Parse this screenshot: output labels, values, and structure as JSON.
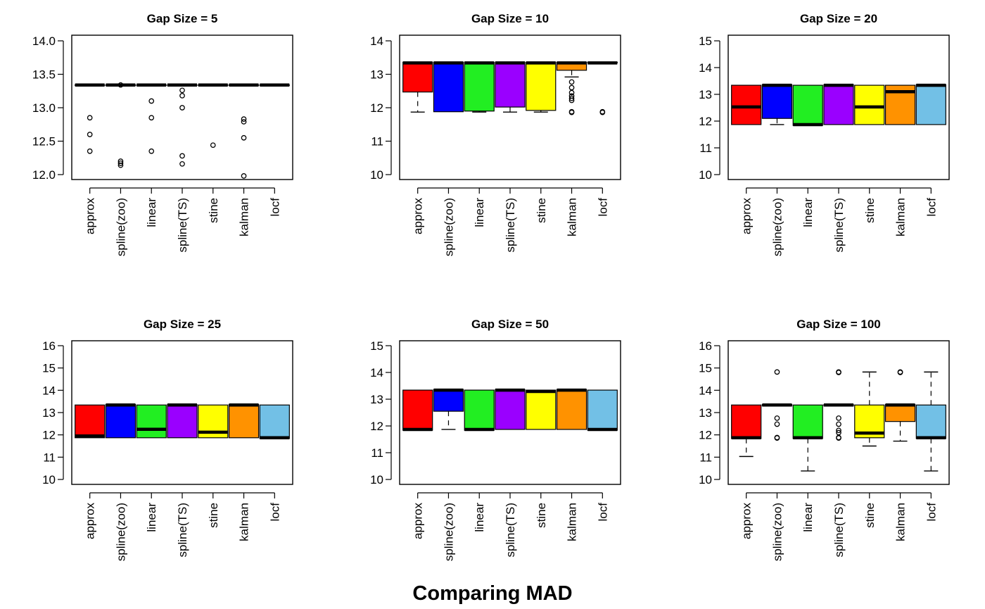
{
  "figure": {
    "title": "Comparing MAD"
  },
  "colors": {
    "approx": "#ff0000",
    "spline(zoo)": "#0000ff",
    "linear": "#22ee22",
    "spline(TS)": "#9a00ff",
    "stine": "#ffff00",
    "kalman": "#ff9200",
    "locf": "#72c0e6",
    "axis": "#000000"
  },
  "chart_data": [
    {
      "type": "box",
      "title": "Gap Size = 5",
      "categories": [
        "approx",
        "spline(zoo)",
        "linear",
        "spline(TS)",
        "stine",
        "kalman",
        "locf"
      ],
      "ylim": [
        12.0,
        14.0
      ],
      "yticks": [
        "12.0",
        "12.5",
        "13.0",
        "13.5",
        "14.0"
      ],
      "boxes": [
        {
          "q1": 13.34,
          "median": 13.34,
          "q3": 13.34,
          "whisker_low": 13.34,
          "whisker_high": 13.34,
          "outliers": [
            12.85,
            12.6,
            12.35
          ]
        },
        {
          "q1": 13.34,
          "median": 13.34,
          "q3": 13.34,
          "whisker_low": 13.34,
          "whisker_high": 13.34,
          "outliers": [
            13.34,
            12.2,
            12.17,
            12.14
          ]
        },
        {
          "q1": 13.34,
          "median": 13.34,
          "q3": 13.34,
          "whisker_low": 13.34,
          "whisker_high": 13.34,
          "outliers": [
            13.1,
            12.85,
            12.35
          ]
        },
        {
          "q1": 13.34,
          "median": 13.34,
          "q3": 13.34,
          "whisker_low": 13.34,
          "whisker_high": 13.34,
          "outliers": [
            13.26,
            13.18,
            13.0,
            12.28,
            12.16
          ]
        },
        {
          "q1": 13.34,
          "median": 13.34,
          "q3": 13.34,
          "whisker_low": 13.34,
          "whisker_high": 13.34,
          "outliers": [
            12.44
          ]
        },
        {
          "q1": 13.34,
          "median": 13.34,
          "q3": 13.34,
          "whisker_low": 13.34,
          "whisker_high": 13.34,
          "outliers": [
            12.83,
            12.79,
            12.55,
            11.98
          ]
        },
        {
          "q1": 13.34,
          "median": 13.34,
          "q3": 13.34,
          "whisker_low": 13.34,
          "whisker_high": 13.34,
          "outliers": []
        }
      ]
    },
    {
      "type": "box",
      "title": "Gap Size = 10",
      "categories": [
        "approx",
        "spline(zoo)",
        "linear",
        "spline(TS)",
        "stine",
        "kalman",
        "locf"
      ],
      "ylim": [
        10,
        14
      ],
      "yticks": [
        "10",
        "11",
        "12",
        "13",
        "14"
      ],
      "boxes": [
        {
          "q1": 12.47,
          "median": 13.34,
          "q3": 13.36,
          "whisker_low": 11.87,
          "whisker_high": 13.36,
          "outliers": []
        },
        {
          "q1": 11.88,
          "median": 13.34,
          "q3": 13.36,
          "whisker_low": 11.87,
          "whisker_high": 13.36,
          "outliers": []
        },
        {
          "q1": 11.9,
          "median": 13.34,
          "q3": 13.36,
          "whisker_low": 11.87,
          "whisker_high": 13.36,
          "outliers": []
        },
        {
          "q1": 12.02,
          "median": 13.34,
          "q3": 13.36,
          "whisker_low": 11.87,
          "whisker_high": 13.36,
          "outliers": []
        },
        {
          "q1": 11.92,
          "median": 13.34,
          "q3": 13.36,
          "whisker_low": 11.87,
          "whisker_high": 13.36,
          "outliers": []
        },
        {
          "q1": 13.12,
          "median": 13.34,
          "q3": 13.36,
          "whisker_low": 12.92,
          "whisker_high": 13.36,
          "outliers": [
            12.77,
            12.6,
            12.45,
            12.35,
            12.28,
            12.22,
            11.88,
            11.86
          ]
        },
        {
          "q1": 13.34,
          "median": 13.34,
          "q3": 13.36,
          "whisker_low": 13.34,
          "whisker_high": 13.36,
          "outliers": [
            11.88,
            11.86
          ]
        }
      ]
    },
    {
      "type": "box",
      "title": "Gap Size = 20",
      "categories": [
        "approx",
        "spline(zoo)",
        "linear",
        "spline(TS)",
        "stine",
        "kalman",
        "locf"
      ],
      "ylim": [
        10,
        15
      ],
      "yticks": [
        "10",
        "11",
        "12",
        "13",
        "14",
        "15"
      ],
      "boxes": [
        {
          "q1": 11.87,
          "median": 12.53,
          "q3": 13.34,
          "whisker_low": 11.87,
          "whisker_high": 13.34,
          "outliers": []
        },
        {
          "q1": 12.1,
          "median": 13.34,
          "q3": 13.36,
          "whisker_low": 11.87,
          "whisker_high": 13.36,
          "outliers": []
        },
        {
          "q1": 11.84,
          "median": 11.87,
          "q3": 13.34,
          "whisker_low": 11.84,
          "whisker_high": 13.34,
          "outliers": []
        },
        {
          "q1": 11.87,
          "median": 13.34,
          "q3": 13.36,
          "whisker_low": 11.87,
          "whisker_high": 13.36,
          "outliers": []
        },
        {
          "q1": 11.87,
          "median": 12.53,
          "q3": 13.34,
          "whisker_low": 11.87,
          "whisker_high": 13.34,
          "outliers": []
        },
        {
          "q1": 11.87,
          "median": 13.1,
          "q3": 13.34,
          "whisker_low": 11.87,
          "whisker_high": 13.34,
          "outliers": []
        },
        {
          "q1": 11.87,
          "median": 13.34,
          "q3": 13.36,
          "whisker_low": 11.87,
          "whisker_high": 13.36,
          "outliers": []
        }
      ]
    },
    {
      "type": "box",
      "title": "Gap Size = 25",
      "categories": [
        "approx",
        "spline(zoo)",
        "linear",
        "spline(TS)",
        "stine",
        "kalman",
        "locf"
      ],
      "ylim": [
        10,
        16
      ],
      "yticks": [
        "10",
        "11",
        "12",
        "13",
        "14",
        "15",
        "16"
      ],
      "boxes": [
        {
          "q1": 11.87,
          "median": 11.95,
          "q3": 13.34,
          "whisker_low": 11.87,
          "whisker_high": 13.34,
          "outliers": []
        },
        {
          "q1": 11.87,
          "median": 13.34,
          "q3": 13.36,
          "whisker_low": 11.87,
          "whisker_high": 13.36,
          "outliers": []
        },
        {
          "q1": 11.87,
          "median": 12.25,
          "q3": 13.34,
          "whisker_low": 11.87,
          "whisker_high": 13.34,
          "outliers": []
        },
        {
          "q1": 11.87,
          "median": 13.34,
          "q3": 13.36,
          "whisker_low": 11.87,
          "whisker_high": 13.36,
          "outliers": []
        },
        {
          "q1": 11.87,
          "median": 12.12,
          "q3": 13.34,
          "whisker_low": 11.87,
          "whisker_high": 13.34,
          "outliers": []
        },
        {
          "q1": 11.87,
          "median": 13.34,
          "q3": 13.36,
          "whisker_low": 11.87,
          "whisker_high": 13.36,
          "outliers": []
        },
        {
          "q1": 11.84,
          "median": 11.87,
          "q3": 13.34,
          "whisker_low": 11.84,
          "whisker_high": 13.34,
          "outliers": []
        }
      ]
    },
    {
      "type": "box",
      "title": "Gap Size = 50",
      "categories": [
        "approx",
        "spline(zoo)",
        "linear",
        "spline(TS)",
        "stine",
        "kalman",
        "locf"
      ],
      "ylim": [
        10,
        15
      ],
      "yticks": [
        "10",
        "11",
        "12",
        "13",
        "14",
        "15"
      ],
      "boxes": [
        {
          "q1": 11.84,
          "median": 11.87,
          "q3": 13.34,
          "whisker_low": 11.84,
          "whisker_high": 13.34,
          "outliers": []
        },
        {
          "q1": 12.55,
          "median": 13.34,
          "q3": 13.36,
          "whisker_low": 11.87,
          "whisker_high": 13.36,
          "outliers": []
        },
        {
          "q1": 11.84,
          "median": 11.87,
          "q3": 13.34,
          "whisker_low": 11.84,
          "whisker_high": 13.34,
          "outliers": []
        },
        {
          "q1": 11.87,
          "median": 13.34,
          "q3": 13.36,
          "whisker_low": 11.87,
          "whisker_high": 13.36,
          "outliers": []
        },
        {
          "q1": 11.87,
          "median": 13.29,
          "q3": 13.34,
          "whisker_low": 11.87,
          "whisker_high": 13.34,
          "outliers": []
        },
        {
          "q1": 11.87,
          "median": 13.34,
          "q3": 13.36,
          "whisker_low": 11.87,
          "whisker_high": 13.36,
          "outliers": []
        },
        {
          "q1": 11.84,
          "median": 11.87,
          "q3": 13.34,
          "whisker_low": 11.84,
          "whisker_high": 13.34,
          "outliers": []
        }
      ]
    },
    {
      "type": "box",
      "title": "Gap Size = 100",
      "categories": [
        "approx",
        "spline(zoo)",
        "linear",
        "spline(TS)",
        "stine",
        "kalman",
        "locf"
      ],
      "ylim": [
        10,
        16
      ],
      "yticks": [
        "10",
        "11",
        "12",
        "13",
        "14",
        "15",
        "16"
      ],
      "boxes": [
        {
          "q1": 11.84,
          "median": 11.87,
          "q3": 13.34,
          "whisker_low": 11.03,
          "whisker_high": 13.34,
          "outliers": []
        },
        {
          "q1": 13.3,
          "median": 13.34,
          "q3": 13.36,
          "whisker_low": 13.3,
          "whisker_high": 13.36,
          "outliers": [
            14.82,
            12.75,
            12.48,
            11.88,
            11.86
          ]
        },
        {
          "q1": 11.84,
          "median": 11.87,
          "q3": 13.34,
          "whisker_low": 10.38,
          "whisker_high": 13.34,
          "outliers": []
        },
        {
          "q1": 13.3,
          "median": 13.34,
          "q3": 13.36,
          "whisker_low": 13.3,
          "whisker_high": 13.36,
          "outliers": [
            14.82,
            14.8,
            12.75,
            12.48,
            12.2,
            12.1,
            11.88,
            11.86
          ]
        },
        {
          "q1": 11.87,
          "median": 12.08,
          "q3": 13.34,
          "whisker_low": 11.5,
          "whisker_high": 14.82,
          "outliers": []
        },
        {
          "q1": 12.6,
          "median": 13.34,
          "q3": 13.36,
          "whisker_low": 11.72,
          "whisker_high": 13.36,
          "outliers": [
            14.82,
            14.8
          ]
        },
        {
          "q1": 11.84,
          "median": 11.87,
          "q3": 13.34,
          "whisker_low": 10.38,
          "whisker_high": 14.82,
          "outliers": []
        }
      ]
    }
  ]
}
